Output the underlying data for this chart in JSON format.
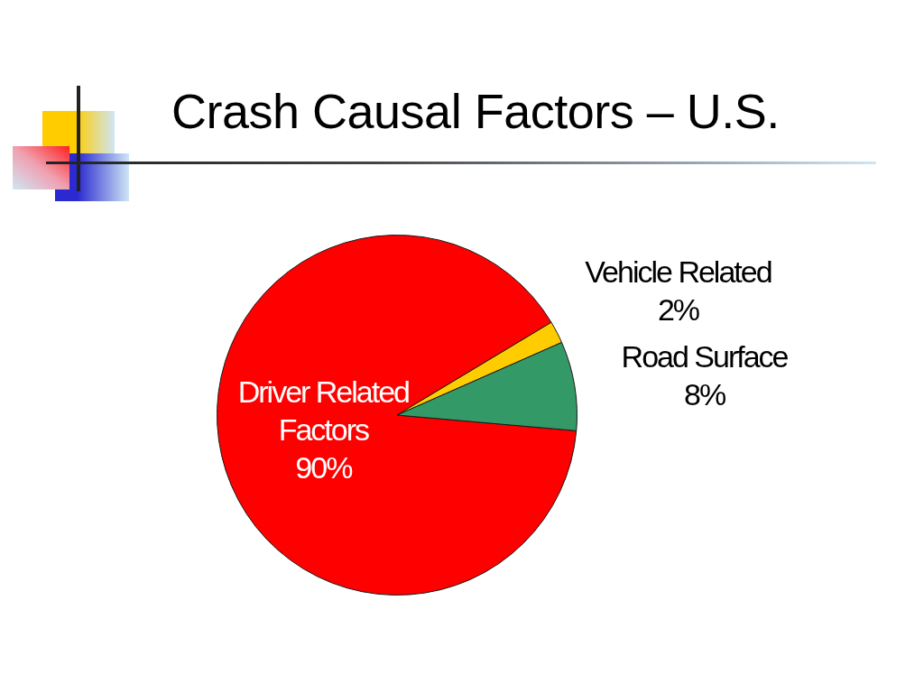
{
  "chart_data": {
    "type": "pie",
    "title": "Crash Causal Factors – U.S.",
    "categories": [
      "Driver Related Factors",
      "Vehicle Related",
      "Road Surface"
    ],
    "values": [
      90,
      2,
      8
    ],
    "colors": [
      "#ff0000",
      "#ffcc00",
      "#339966"
    ],
    "value_labels": [
      "90%",
      "2%",
      "8%"
    ]
  }
}
